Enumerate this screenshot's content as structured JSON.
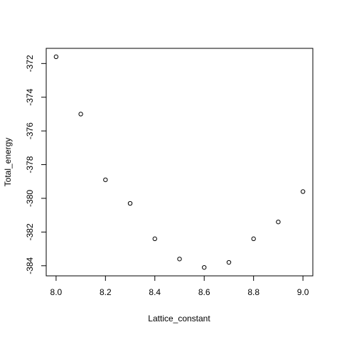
{
  "chart_data": {
    "type": "scatter",
    "x_label": "Lattice_constant",
    "y_label": "Total_energy",
    "x": [
      8.0,
      8.1,
      8.2,
      8.3,
      8.4,
      8.5,
      8.6,
      8.7,
      8.8,
      8.9,
      9.0
    ],
    "values": [
      -371.6,
      -375.0,
      -378.9,
      -380.3,
      -382.4,
      -383.6,
      -384.1,
      -383.8,
      -382.4,
      -381.4,
      -379.6
    ],
    "color": "#000000",
    "xlim": [
      7.96,
      9.04
    ],
    "xticks": [
      {
        "value": 8.0,
        "label": "8.0"
      },
      {
        "value": 8.2,
        "label": "8.2"
      },
      {
        "value": 8.4,
        "label": "8.4"
      },
      {
        "value": 8.6,
        "label": "8.6"
      },
      {
        "value": 8.8,
        "label": "8.8"
      },
      {
        "value": 9.0,
        "label": "9.0"
      }
    ],
    "ylim": [
      -384.6,
      -371.1
    ],
    "yticks": [
      -384,
      -382,
      -380,
      -378,
      -376,
      -374,
      -372
    ],
    "grid": false
  }
}
